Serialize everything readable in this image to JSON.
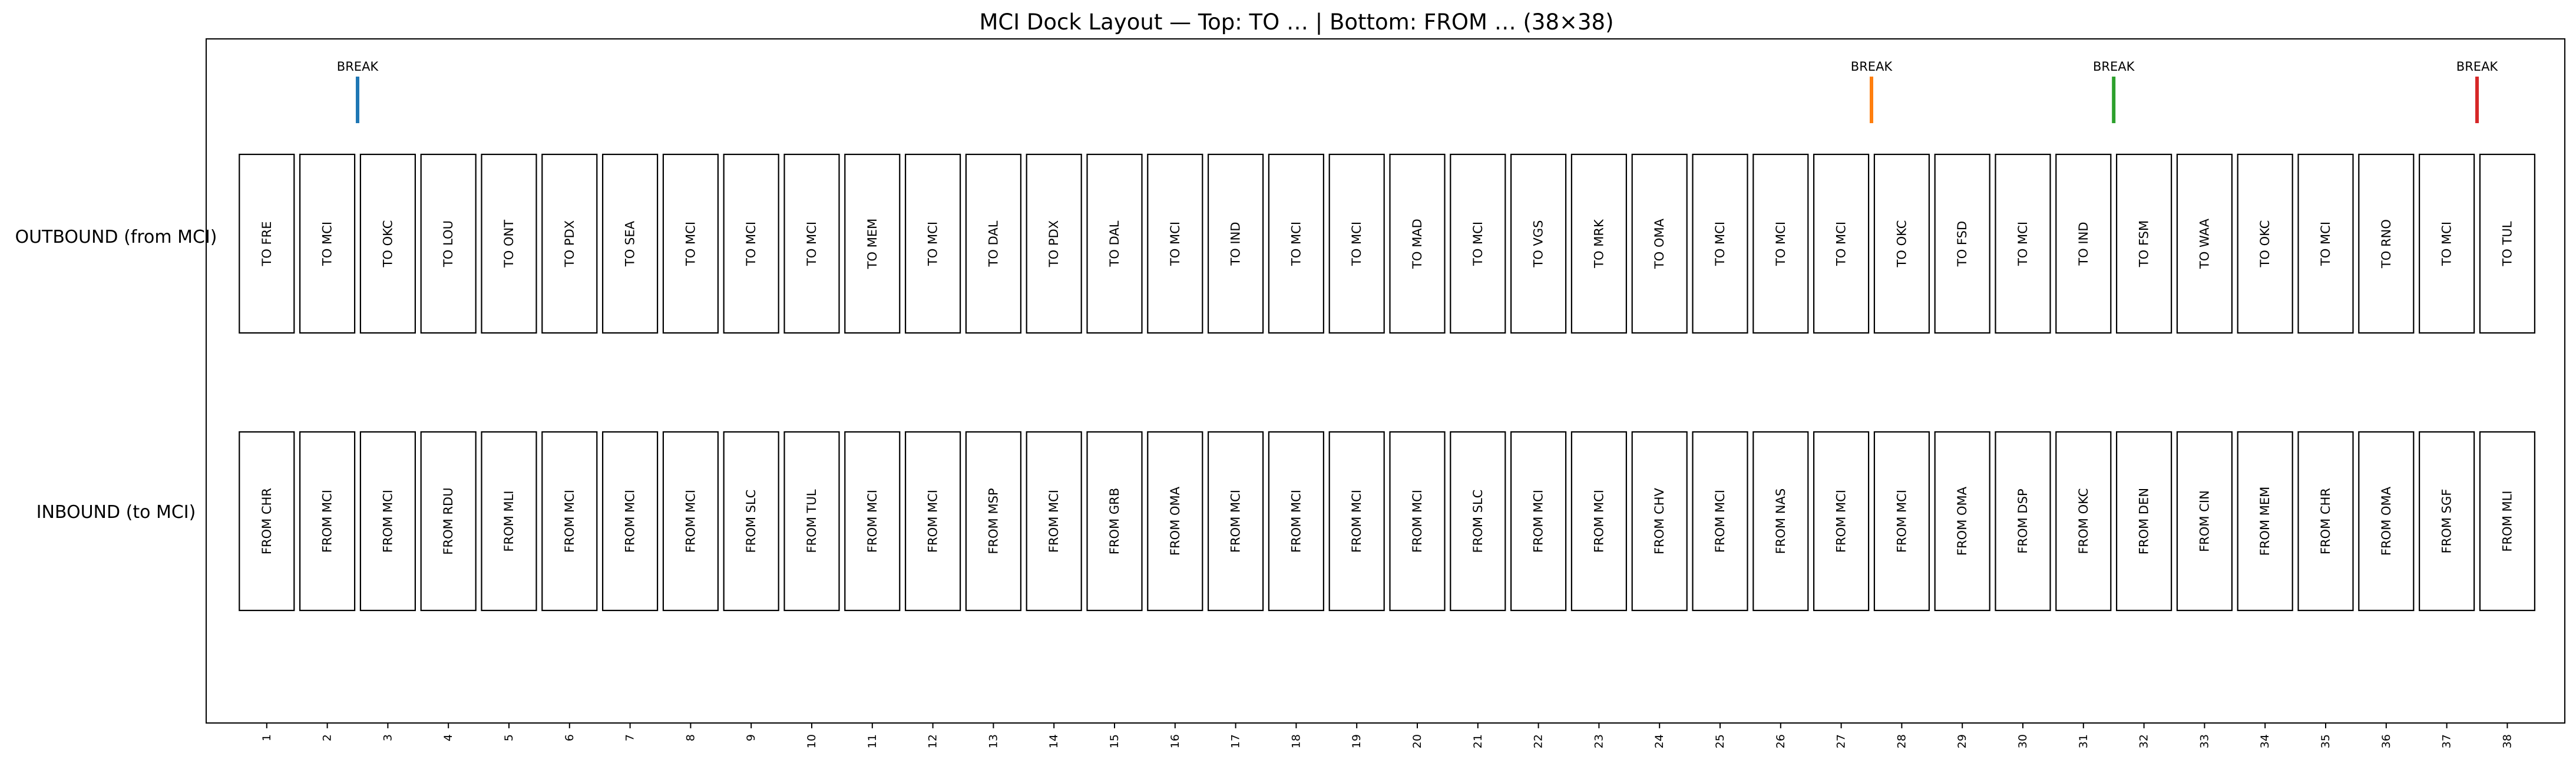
{
  "title": "MCI Dock Layout — Top: TO … | Bottom: FROM … (38×38)",
  "rows": {
    "outbound_label": "OUTBOUND (from MCI)",
    "inbound_label": "INBOUND (to MCI)"
  },
  "door_numbers": [
    "1",
    "2",
    "3",
    "4",
    "5",
    "6",
    "7",
    "8",
    "9",
    "10",
    "11",
    "12",
    "13",
    "14",
    "15",
    "16",
    "17",
    "18",
    "19",
    "20",
    "21",
    "22",
    "23",
    "24",
    "25",
    "26",
    "27",
    "28",
    "29",
    "30",
    "31",
    "32",
    "33",
    "34",
    "35",
    "36",
    "37",
    "38"
  ],
  "outbound_doors": [
    "TO FRE",
    "TO MCI",
    "TO OKC",
    "TO LOU",
    "TO ONT",
    "TO PDX",
    "TO SEA",
    "TO MCI",
    "TO MCI",
    "TO MCI",
    "TO MEM",
    "TO MCI",
    "TO DAL",
    "TO PDX",
    "TO DAL",
    "TO MCI",
    "TO IND",
    "TO MCI",
    "TO MCI",
    "TO MAD",
    "TO MCI",
    "TO VGS",
    "TO MRK",
    "TO OMA",
    "TO MCI",
    "TO MCI",
    "TO MCI",
    "TO OKC",
    "TO FSD",
    "TO MCI",
    "TO IND",
    "TO FSM",
    "TO WAA",
    "TO OKC",
    "TO MCI",
    "TO RNO",
    "TO MCI",
    "TO TUL"
  ],
  "inbound_doors": [
    "FROM CHR",
    "FROM MCI",
    "FROM MCI",
    "FROM RDU",
    "FROM MLI",
    "FROM MCI",
    "FROM MCI",
    "FROM MCI",
    "FROM SLC",
    "FROM TUL",
    "FROM MCI",
    "FROM MCI",
    "FROM MSP",
    "FROM MCI",
    "FROM GRB",
    "FROM OMA",
    "FROM MCI",
    "FROM MCI",
    "FROM MCI",
    "FROM MCI",
    "FROM SLC",
    "FROM MCI",
    "FROM MCI",
    "FROM CHV",
    "FROM MCI",
    "FROM NAS",
    "FROM MCI",
    "FROM MCI",
    "FROM OMA",
    "FROM DSP",
    "FROM OKC",
    "FROM DEN",
    "FROM CIN",
    "FROM MEM",
    "FROM CHR",
    "FROM OMA",
    "FROM SGF",
    "FROM MLI"
  ],
  "breaks": [
    {
      "label": "BREAK",
      "after_door": 2,
      "color": "#1f77b4"
    },
    {
      "label": "BREAK",
      "after_door": 27,
      "color": "#ff7f0e"
    },
    {
      "label": "BREAK",
      "after_door": 31,
      "color": "#2ca02c"
    },
    {
      "label": "BREAK",
      "after_door": 37,
      "color": "#d62728"
    }
  ]
}
